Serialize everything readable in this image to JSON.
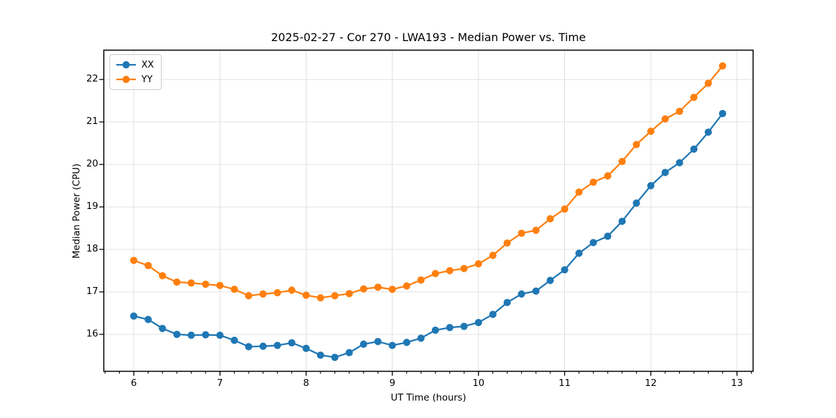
{
  "title": "2025-02-27 - Cor 270 - LWA193 - Median Power vs. Time",
  "chart_data": {
    "type": "line",
    "title": "2025-02-27 - Cor 270 - LWA193 - Median Power vs. Time",
    "xlabel": "UT Time (hours)",
    "ylabel": "Median Power (CPU)",
    "xlim": [
      5.652,
      13.187
    ],
    "ylim": [
      15.13,
      22.69
    ],
    "xticks": [
      6,
      7,
      8,
      9,
      10,
      11,
      12,
      13
    ],
    "yticks": [
      16,
      17,
      18,
      19,
      20,
      21,
      22
    ],
    "x_minor_step": 0.1666667,
    "grid": true,
    "grid_color": "#e0e0e0",
    "legend_position": "upper-left",
    "x": [
      6.0,
      6.167,
      6.333,
      6.5,
      6.667,
      6.833,
      7.0,
      7.167,
      7.333,
      7.5,
      7.667,
      7.833,
      8.0,
      8.167,
      8.333,
      8.5,
      8.667,
      8.833,
      9.0,
      9.167,
      9.333,
      9.5,
      9.667,
      9.833,
      10.0,
      10.167,
      10.333,
      10.5,
      10.667,
      10.833,
      11.0,
      11.167,
      11.333,
      11.5,
      11.667,
      11.833,
      12.0,
      12.167,
      12.333,
      12.5,
      12.667,
      12.833
    ],
    "series": [
      {
        "name": "XX",
        "color": "#1f77b4",
        "values": [
          16.43,
          16.35,
          16.14,
          16.0,
          15.98,
          15.99,
          15.98,
          15.86,
          15.71,
          15.72,
          15.74,
          15.8,
          15.67,
          15.51,
          15.46,
          15.57,
          15.77,
          15.83,
          15.74,
          15.81,
          15.91,
          16.1,
          16.16,
          16.19,
          16.28,
          16.47,
          16.75,
          16.95,
          17.02,
          17.27,
          17.52,
          17.91,
          18.16,
          18.31,
          18.66,
          19.09,
          19.5,
          19.81,
          20.04,
          20.36,
          20.76,
          21.2
        ]
      },
      {
        "name": "YY",
        "color": "#ff7f0e",
        "values": [
          17.74,
          17.62,
          17.38,
          17.23,
          17.21,
          17.18,
          17.15,
          17.06,
          16.91,
          16.95,
          16.98,
          17.04,
          16.92,
          16.86,
          16.91,
          16.96,
          17.07,
          17.11,
          17.06,
          17.14,
          17.28,
          17.43,
          17.5,
          17.55,
          17.66,
          17.86,
          18.15,
          18.38,
          18.45,
          18.72,
          18.95,
          19.35,
          19.58,
          19.73,
          20.07,
          20.47,
          20.78,
          21.07,
          21.25,
          21.58,
          21.91,
          22.32
        ]
      }
    ]
  },
  "legend": {
    "items": [
      {
        "label": "XX"
      },
      {
        "label": "YY"
      }
    ]
  }
}
